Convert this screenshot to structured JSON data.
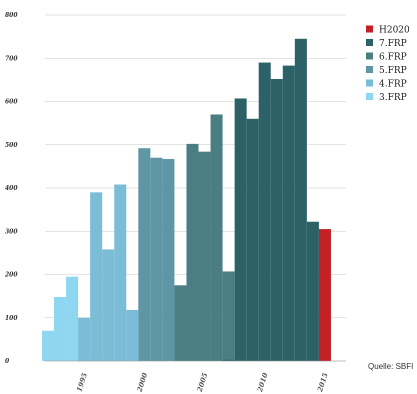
{
  "chart_data": {
    "type": "bar",
    "title": "",
    "xlabel": "",
    "ylabel": "",
    "ylim": [
      0,
      800
    ],
    "xlim": [
      1991.75,
      2016.75
    ],
    "grid": true,
    "legend_position": "right",
    "y_ticks": [
      "0",
      "100",
      "200",
      "300",
      "400",
      "500",
      "600",
      "700",
      "800"
    ],
    "x_ticks": [
      {
        "label": "1995",
        "value": 1995
      },
      {
        "label": "2000",
        "value": 2000
      },
      {
        "label": "2005",
        "value": 2005
      },
      {
        "label": "2010",
        "value": 2010
      },
      {
        "label": "2015",
        "value": 2015
      }
    ],
    "series": [
      {
        "name": "3.FRP",
        "color": "#8fd6f0",
        "x": [
          1992,
          1993,
          1994,
          1995,
          1996,
          1997,
          1998
        ],
        "values": [
          70,
          148,
          195,
          80,
          10,
          5,
          2
        ]
      },
      {
        "name": "4.FRP",
        "color": "#7bbcd6",
        "x": [
          1995,
          1996,
          1997,
          1998,
          1999
        ],
        "values": [
          100,
          390,
          258,
          408,
          118
        ]
      },
      {
        "name": "5.FRP",
        "color": "#5e96a6",
        "x": [
          1999,
          2000,
          2001,
          2002,
          2003
        ],
        "values": [
          0,
          492,
          470,
          467,
          160
        ]
      },
      {
        "name": "6.FRP",
        "color": "#4b7e83",
        "x": [
          2003,
          2004,
          2005,
          2006,
          2007
        ],
        "values": [
          175,
          502,
          484,
          570,
          207
        ]
      },
      {
        "name": "7.FRP",
        "color": "#2c6168",
        "x": [
          2007,
          2008,
          2009,
          2010,
          2011,
          2012,
          2013,
          2014
        ],
        "values": [
          3,
          607,
          560,
          690,
          652,
          683,
          745,
          322
        ]
      },
      {
        "name": "H2020",
        "color": "#c22226",
        "x": [
          2014,
          2015
        ],
        "values": [
          0,
          305
        ]
      }
    ],
    "legend": [
      "H2020",
      "7.FRP",
      "6.FRP",
      "5.FRP",
      "4.FRP",
      "3.FRP"
    ],
    "annotations": [
      {
        "text": "Quelle: SBFI"
      }
    ]
  }
}
